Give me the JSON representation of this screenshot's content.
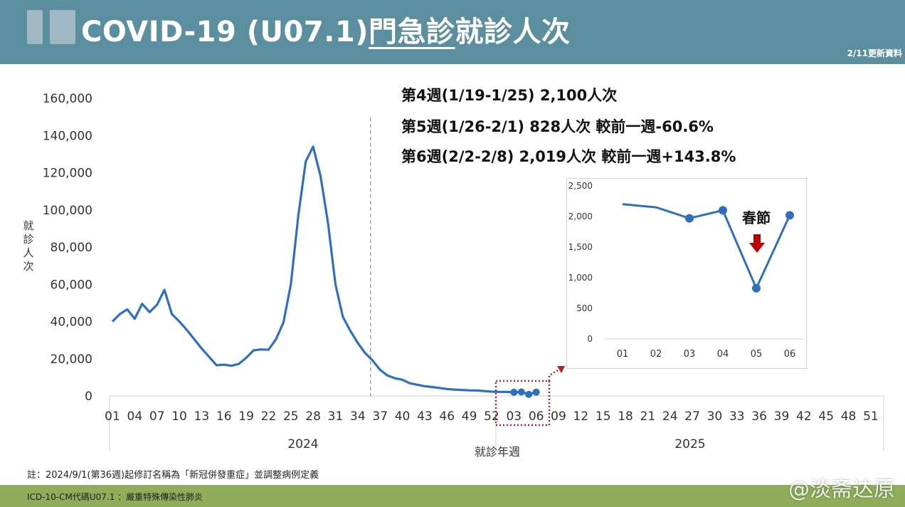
{
  "header": {
    "title_prefix": "COVID-19 (U07.1)",
    "title_underlined": "門急診",
    "title_suffix": "就診人次",
    "update_note": "2/11更新資料"
  },
  "summary_lines": [
    "第4週(1/19-1/25) 2,100人次",
    "第5週(1/26-2/1)  828人次 較前一週-60.6%",
    "第6週(2/2-2/8) 2,019人次 較前一週+143.8%"
  ],
  "chart_data": [
    {
      "type": "line",
      "ylabel": "就診人次",
      "xlabel": "就診年週",
      "ylim": [
        0,
        160000
      ],
      "yticks": [
        "0",
        "20,000",
        "40,000",
        "60,000",
        "80,000",
        "100,000",
        "120,000",
        "140,000",
        "160,000"
      ],
      "xtick_labels": [
        "01",
        "04",
        "07",
        "10",
        "13",
        "16",
        "19",
        "22",
        "25",
        "28",
        "31",
        "34",
        "37",
        "40",
        "43",
        "46",
        "49",
        "52",
        "03",
        "06",
        "09",
        "12",
        "15",
        "18",
        "21",
        "24",
        "27",
        "30",
        "33",
        "36",
        "39",
        "42",
        "45",
        "48",
        "51"
      ],
      "year_labels": [
        "2024",
        "2025"
      ],
      "divider_week": 36,
      "series": [
        {
          "color": "#2f6fbf",
          "x": [
            "2024-01",
            "2024-02",
            "2024-03",
            "2024-04",
            "2024-05",
            "2024-06",
            "2024-07",
            "2024-08",
            "2024-09",
            "2024-10",
            "2024-11",
            "2024-12",
            "2024-13",
            "2024-14",
            "2024-15",
            "2024-16",
            "2024-17",
            "2024-18",
            "2024-19",
            "2024-20",
            "2024-21",
            "2024-22",
            "2024-23",
            "2024-24",
            "2024-25",
            "2024-26",
            "2024-27",
            "2024-28",
            "2024-29",
            "2024-30",
            "2024-31",
            "2024-32",
            "2024-33",
            "2024-34",
            "2024-35",
            "2024-36",
            "2024-37",
            "2024-38",
            "2024-39",
            "2024-40",
            "2024-41",
            "2024-42",
            "2024-43",
            "2024-44",
            "2024-45",
            "2024-46",
            "2024-47",
            "2024-48",
            "2024-49",
            "2024-50",
            "2024-51",
            "2024-52",
            "2025-01",
            "2025-02",
            "2025-03",
            "2025-04",
            "2025-05",
            "2025-06"
          ],
          "values": [
            40000,
            44000,
            46500,
            41500,
            49500,
            45000,
            49000,
            57000,
            44000,
            40000,
            35500,
            30500,
            25500,
            21000,
            16500,
            16800,
            16200,
            17200,
            20500,
            24500,
            25000,
            24800,
            30500,
            39500,
            60000,
            97000,
            126000,
            134000,
            118000,
            93000,
            60000,
            42500,
            35000,
            28500,
            23000,
            19000,
            14000,
            11000,
            9500,
            8700,
            6800,
            6000,
            5200,
            4800,
            4300,
            3700,
            3400,
            3200,
            3000,
            2900,
            2600,
            2300,
            2200,
            2150,
            1970,
            2100,
            828,
            2019
          ]
        }
      ],
      "marked_points_from_index": 54
    },
    {
      "type": "line",
      "categories": [
        "01",
        "02",
        "03",
        "04",
        "05",
        "06"
      ],
      "values": [
        2200,
        2150,
        1970,
        2100,
        828,
        2019
      ],
      "marker_categories": [
        "03",
        "04",
        "05",
        "06"
      ],
      "ylim": [
        0,
        2500
      ],
      "yticks": [
        "0",
        "500",
        "1,000",
        "1,500",
        "2,000",
        "2,500"
      ],
      "annotation": "春節",
      "annotation_category": "05",
      "line_color": "#2f6fbf",
      "arrow_color": "#c00000"
    }
  ],
  "note": "註：2024/9/1(第36週)起修訂名稱為「新冠併發重症」並調整病例定義",
  "footer": "ICD-10-CM代碼U07.1 ：嚴重特殊傳染性肺炎",
  "watermark": "@淡斋达原"
}
